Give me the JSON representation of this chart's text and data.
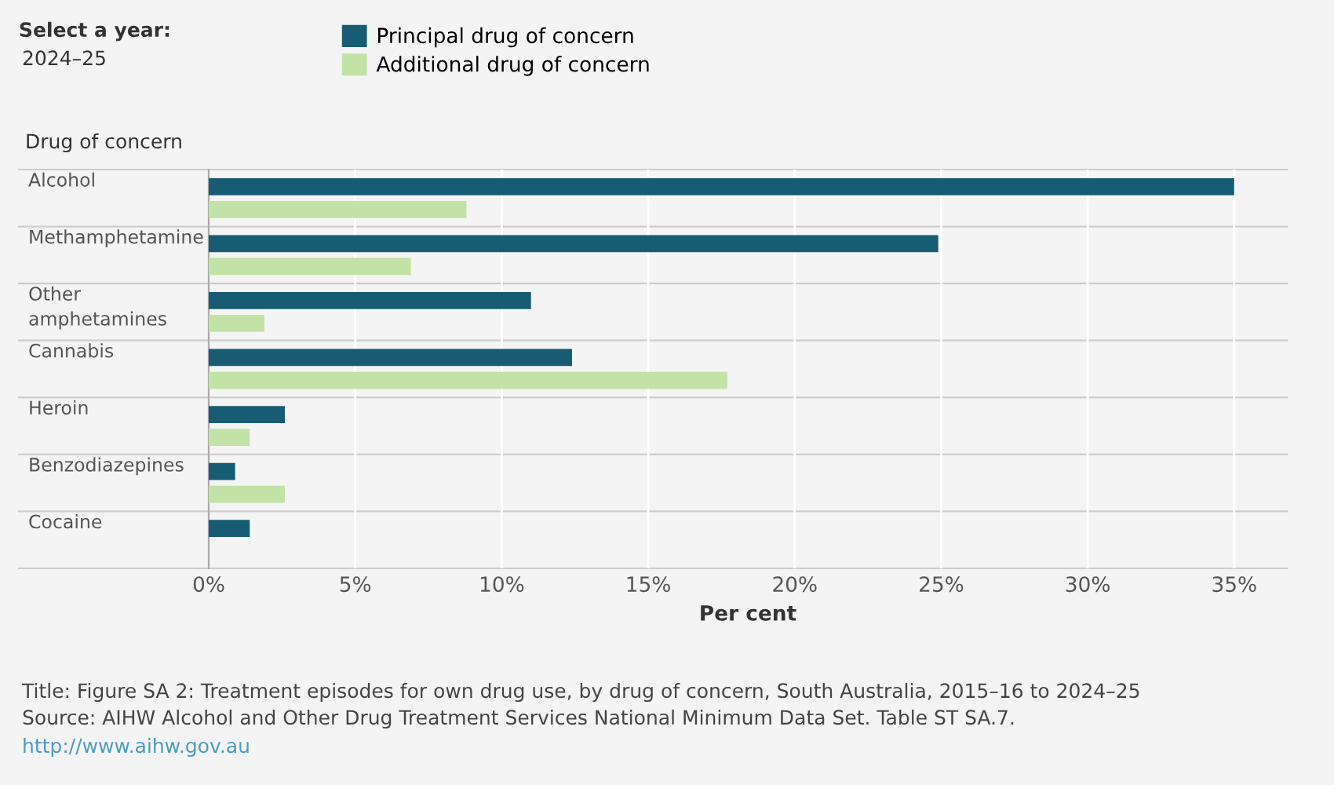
{
  "chart_data": {
    "type": "bar",
    "orientation": "horizontal",
    "ylabel": "Drug of concern",
    "xlabel": "Per cent",
    "categories": [
      "Alcohol",
      "Methamphetamine",
      "Other\namphetamines",
      "Cannabis",
      "Heroin",
      "Benzodiazepines",
      "Cocaine"
    ],
    "series": [
      {
        "name": "Principal drug of concern",
        "color": "#185c73",
        "values": [
          35.0,
          24.9,
          11.0,
          12.4,
          2.6,
          0.9,
          1.4
        ]
      },
      {
        "name": "Additional drug of concern",
        "color": "#c3e2a6",
        "values": [
          8.8,
          6.9,
          1.9,
          17.7,
          1.4,
          2.6,
          null
        ]
      }
    ],
    "xlim": [
      0,
      36.8
    ],
    "xticks": [
      {
        "value": 0,
        "label": "0%"
      },
      {
        "value": 5,
        "label": "5%"
      },
      {
        "value": 10,
        "label": "10%"
      },
      {
        "value": 15,
        "label": "15%"
      },
      {
        "value": 20,
        "label": "20%"
      },
      {
        "value": 25,
        "label": "25%"
      },
      {
        "value": 30,
        "label": "30%"
      },
      {
        "value": 35,
        "label": "35%"
      }
    ],
    "grid": "x",
    "legend": "top left",
    "annotations": [
      "Select a year:",
      "2024–25",
      "Title: Figure SA 2: Treatment episodes for own drug use, by drug of concern, South Australia, 2015–16 to 2024–25",
      "Source: AIHW Alcohol and Other Drug Treatment Services National Minimum Data Set. Table ST SA.7.",
      "http://www.aihw.gov.au"
    ]
  }
}
